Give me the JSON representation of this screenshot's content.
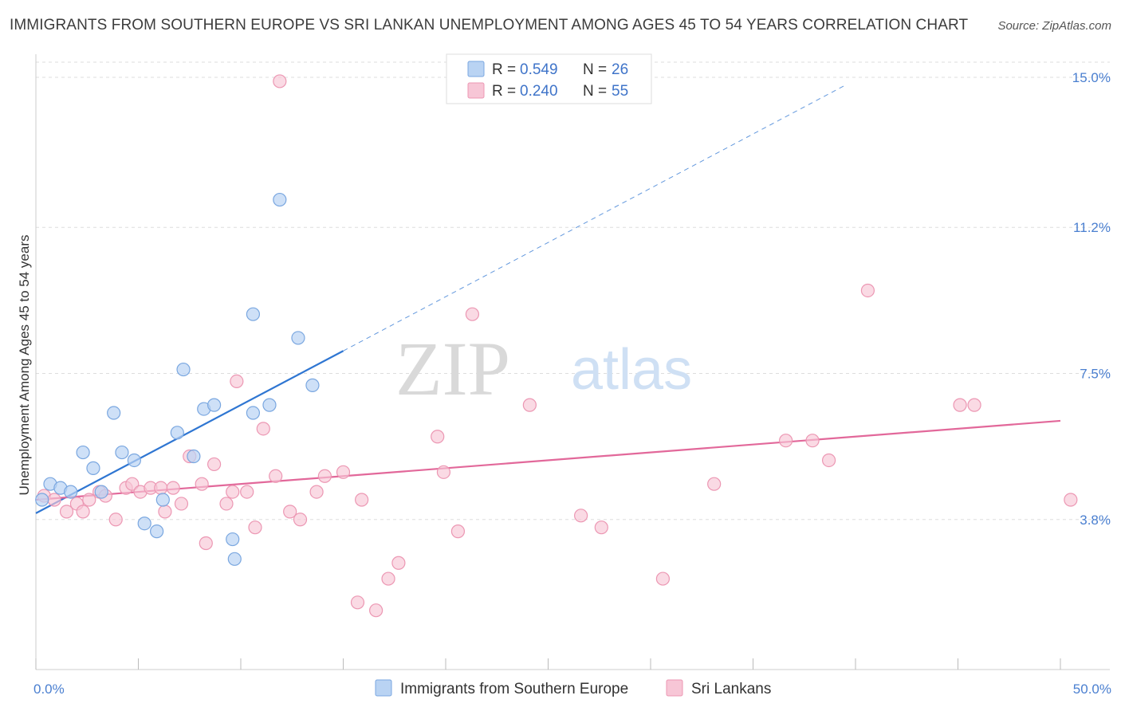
{
  "title": "IMMIGRANTS FROM SOUTHERN EUROPE VS SRI LANKAN UNEMPLOYMENT AMONG AGES 45 TO 54 YEARS CORRELATION CHART",
  "source": "Source: ZipAtlas.com",
  "watermark": {
    "zip": "ZIP",
    "atlas": "atlas"
  },
  "colors": {
    "blue_fill": "#b9d3f3",
    "blue_stroke": "#7aa7e0",
    "blue_line": "#2f76d2",
    "pink_fill": "#f7c6d6",
    "pink_stroke": "#ec97b3",
    "pink_line": "#e2689a",
    "grid": "#dddddd",
    "tick_label": "#4a7fd0"
  },
  "legend": {
    "rows": [
      {
        "r_label": "R =",
        "r_value": "0.549",
        "n_label": "N =",
        "n_value": "26",
        "series": "blue"
      },
      {
        "r_label": "R =",
        "r_value": "0.240",
        "n_label": "N =",
        "n_value": "55",
        "series": "pink"
      }
    ]
  },
  "chart_data": {
    "type": "scatter",
    "xlabel": "",
    "ylabel": "Unemployment Among Ages 45 to 54 years",
    "xlim": [
      0,
      50
    ],
    "ylim": [
      0,
      15.5
    ],
    "x_tick_labels": [
      "0.0%",
      "50.0%"
    ],
    "y_ticks": [
      3.8,
      7.5,
      11.2,
      15.0
    ],
    "y_tick_labels": [
      "3.8%",
      "7.5%",
      "11.2%",
      "15.0%"
    ],
    "series": [
      {
        "name": "Immigrants from Southern Europe",
        "color": "blue",
        "points": [
          [
            0.3,
            4.3
          ],
          [
            0.7,
            4.7
          ],
          [
            1.2,
            4.6
          ],
          [
            1.7,
            4.5
          ],
          [
            2.3,
            5.5
          ],
          [
            2.8,
            5.1
          ],
          [
            3.2,
            4.5
          ],
          [
            3.8,
            6.5
          ],
          [
            4.2,
            5.5
          ],
          [
            4.8,
            5.3
          ],
          [
            5.3,
            3.7
          ],
          [
            5.9,
            3.5
          ],
          [
            6.2,
            4.3
          ],
          [
            6.9,
            6.0
          ],
          [
            7.2,
            7.6
          ],
          [
            7.7,
            5.4
          ],
          [
            8.2,
            6.6
          ],
          [
            8.7,
            6.7
          ],
          [
            9.6,
            3.3
          ],
          [
            9.7,
            2.8
          ],
          [
            10.6,
            9.0
          ],
          [
            10.6,
            6.5
          ],
          [
            11.4,
            6.7
          ],
          [
            11.9,
            11.9
          ],
          [
            12.8,
            8.4
          ],
          [
            13.5,
            7.2
          ]
        ],
        "trend": {
          "x_start": 0,
          "y_start": 3.96,
          "x_solid_end": 15,
          "y_solid_end": 8.07,
          "x_dash_end": 39.5,
          "y_dash_end": 14.8
        }
      },
      {
        "name": "Sri Lankans",
        "color": "pink",
        "points": [
          [
            0.4,
            4.4
          ],
          [
            0.9,
            4.3
          ],
          [
            1.5,
            4.0
          ],
          [
            2.0,
            4.2
          ],
          [
            2.3,
            4.0
          ],
          [
            2.6,
            4.3
          ],
          [
            3.1,
            4.5
          ],
          [
            3.4,
            4.4
          ],
          [
            3.9,
            3.8
          ],
          [
            4.4,
            4.6
          ],
          [
            4.7,
            4.7
          ],
          [
            5.1,
            4.5
          ],
          [
            5.6,
            4.6
          ],
          [
            6.1,
            4.6
          ],
          [
            6.3,
            4.0
          ],
          [
            6.7,
            4.6
          ],
          [
            7.1,
            4.2
          ],
          [
            7.5,
            5.4
          ],
          [
            8.1,
            4.7
          ],
          [
            8.3,
            3.2
          ],
          [
            8.7,
            5.2
          ],
          [
            9.3,
            4.2
          ],
          [
            9.6,
            4.5
          ],
          [
            9.8,
            7.3
          ],
          [
            10.3,
            4.5
          ],
          [
            10.7,
            3.6
          ],
          [
            11.1,
            6.1
          ],
          [
            11.7,
            4.9
          ],
          [
            11.9,
            14.9
          ],
          [
            12.4,
            4.0
          ],
          [
            12.9,
            3.8
          ],
          [
            13.7,
            4.5
          ],
          [
            14.1,
            4.9
          ],
          [
            15.0,
            5.0
          ],
          [
            15.7,
            1.7
          ],
          [
            15.9,
            4.3
          ],
          [
            16.6,
            1.5
          ],
          [
            17.2,
            2.3
          ],
          [
            17.7,
            2.7
          ],
          [
            19.6,
            5.9
          ],
          [
            19.9,
            5.0
          ],
          [
            20.6,
            3.5
          ],
          [
            21.3,
            9.0
          ],
          [
            24.1,
            6.7
          ],
          [
            26.6,
            3.9
          ],
          [
            27.6,
            3.6
          ],
          [
            30.6,
            2.3
          ],
          [
            33.1,
            4.7
          ],
          [
            36.6,
            5.8
          ],
          [
            37.9,
            5.8
          ],
          [
            38.7,
            5.3
          ],
          [
            40.6,
            9.6
          ],
          [
            45.1,
            6.7
          ],
          [
            45.8,
            6.7
          ],
          [
            50.5,
            4.3
          ]
        ],
        "trend": {
          "x_start": 0,
          "y_start": 4.3,
          "x_end": 50,
          "y_end": 6.3
        }
      }
    ],
    "bottom_legend": [
      "Immigrants from Southern Europe",
      "Sri Lankans"
    ]
  }
}
